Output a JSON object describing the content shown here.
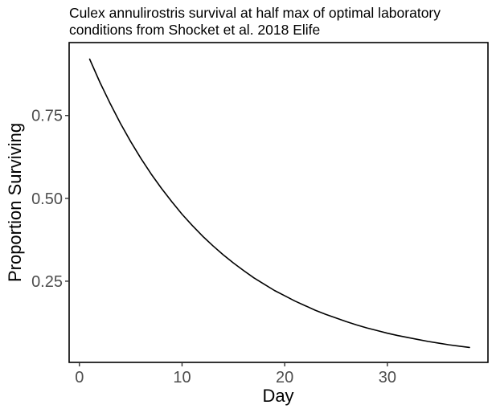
{
  "chart_data": {
    "type": "line",
    "title": "Culex annulirostris survival at half max of optimal laboratory conditions from Shocket et al. 2018 Elife",
    "title_lines": [
      "Culex annulirostris survival at half max of optimal laboratory",
      "conditions from Shocket et al. 2018 Elife"
    ],
    "xlabel": "Day",
    "ylabel": "Proportion Surviving",
    "xlim": [
      -1.0,
      39.8
    ],
    "ylim": [
      0.005,
      0.97
    ],
    "xticks": [
      0,
      10,
      20,
      30
    ],
    "xtick_labels": [
      "0",
      "10",
      "20",
      "30"
    ],
    "yticks": [
      0.25,
      0.5,
      0.75
    ],
    "ytick_labels": [
      "0.25",
      "0.50",
      "0.75"
    ],
    "grid": false,
    "line_color": "#000000",
    "series": [
      {
        "x": [
          1,
          2,
          3,
          4,
          5,
          6,
          7,
          8,
          9,
          10,
          11,
          12,
          13,
          14,
          15,
          16,
          17,
          18,
          19,
          20,
          21,
          22,
          23,
          24,
          25,
          26,
          27,
          28,
          29,
          30,
          31,
          32,
          33,
          34,
          35,
          36,
          37,
          38
        ],
        "values": [
          0.92,
          0.85,
          0.786,
          0.726,
          0.671,
          0.62,
          0.573,
          0.53,
          0.49,
          0.452,
          0.418,
          0.386,
          0.357,
          0.33,
          0.305,
          0.282,
          0.26,
          0.241,
          0.222,
          0.206,
          0.19,
          0.176,
          0.162,
          0.15,
          0.139,
          0.128,
          0.118,
          0.109,
          0.101,
          0.093,
          0.086,
          0.08,
          0.074,
          0.068,
          0.063,
          0.058,
          0.054,
          0.05
        ]
      }
    ]
  }
}
